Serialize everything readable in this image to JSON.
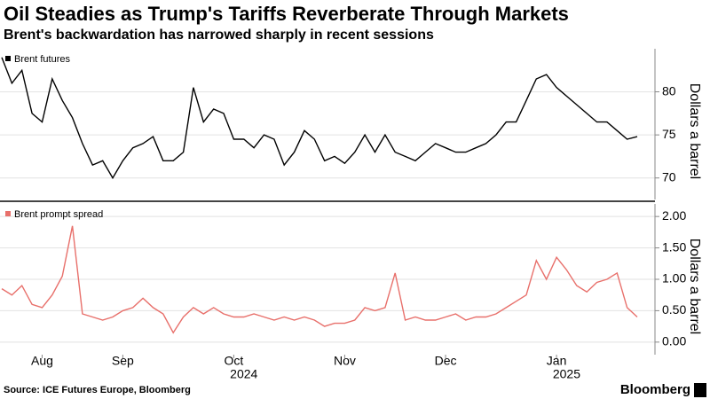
{
  "title": "Oil Steadies as Trump's Tariffs Reverberate Through Markets",
  "subtitle": "Brent's backwardation has narrowed sharply in recent sessions",
  "source": "Source: ICE Futures Europe, Bloomberg",
  "brand": "Bloomberg",
  "chart_data": [
    {
      "type": "line",
      "y_label": "Dollars a barrel",
      "ylim": [
        67.5,
        85
      ],
      "yticks": [
        70,
        75,
        80
      ],
      "grid": true,
      "legend": "top-left",
      "series": [
        {
          "name": "Brent futures",
          "color": "#000000",
          "values": [
            84,
            81,
            82.5,
            77.5,
            76.5,
            81.5,
            79,
            77,
            74,
            71.5,
            72,
            70,
            72,
            73.5,
            74,
            74.8,
            72,
            72,
            73,
            80.5,
            76.5,
            78,
            77.5,
            74.5,
            74.5,
            73.5,
            75,
            74.5,
            71.5,
            73,
            75.5,
            74.5,
            72,
            72.5,
            71.7,
            73,
            75,
            73,
            75,
            73,
            72.5,
            72,
            73,
            74,
            73.5,
            73,
            73,
            73.5,
            74,
            75,
            76.5,
            76.5,
            79,
            81.5,
            82,
            80.5,
            79.5,
            78.5,
            77.5,
            76.5,
            76.5,
            75.5,
            74.5,
            74.8
          ]
        }
      ]
    },
    {
      "type": "line",
      "y_label": "Dollars a barrel",
      "categories": [
        null,
        null,
        null,
        null,
        "Aug",
        null,
        null,
        null,
        null,
        null,
        null,
        null,
        "Sep",
        null,
        null,
        null,
        null,
        null,
        null,
        null,
        null,
        null,
        null,
        "Oct",
        null,
        null,
        null,
        null,
        null,
        null,
        null,
        null,
        null,
        null,
        "Nov",
        null,
        null,
        null,
        null,
        null,
        null,
        null,
        null,
        null,
        "Dec",
        null,
        null,
        null,
        null,
        null,
        null,
        null,
        null,
        null,
        null,
        "Jan",
        null,
        null,
        null,
        null,
        null,
        null,
        null,
        null
      ],
      "years": [
        null,
        null,
        null,
        null,
        null,
        null,
        null,
        null,
        null,
        null,
        null,
        null,
        null,
        null,
        null,
        null,
        null,
        null,
        null,
        null,
        null,
        null,
        null,
        null,
        "2024",
        null,
        null,
        null,
        null,
        null,
        null,
        null,
        null,
        null,
        null,
        null,
        null,
        null,
        null,
        null,
        null,
        null,
        null,
        null,
        null,
        null,
        null,
        null,
        null,
        null,
        null,
        null,
        null,
        null,
        null,
        null,
        "2025",
        null,
        null,
        null,
        null,
        null,
        null,
        null
      ],
      "ylim": [
        -0.2,
        2.2
      ],
      "yticks": [
        {
          "value": 0,
          "label": "0.00"
        },
        {
          "value": 0.5,
          "label": "0.50"
        },
        {
          "value": 1,
          "label": "1.00"
        },
        {
          "value": 1.5,
          "label": "1.50"
        },
        {
          "value": 2,
          "label": "2.00"
        }
      ],
      "grid": true,
      "legend": "top-left",
      "series": [
        {
          "name": "Brent prompt spread",
          "color": "#e8706b",
          "values": [
            0.85,
            0.75,
            0.9,
            0.6,
            0.55,
            0.75,
            1.05,
            1.85,
            0.45,
            0.4,
            0.35,
            0.4,
            0.5,
            0.55,
            0.7,
            0.55,
            0.45,
            0.15,
            0.4,
            0.55,
            0.45,
            0.55,
            0.45,
            0.4,
            0.4,
            0.45,
            0.4,
            0.35,
            0.4,
            0.35,
            0.4,
            0.35,
            0.25,
            0.3,
            0.3,
            0.35,
            0.55,
            0.5,
            0.55,
            1.1,
            0.35,
            0.4,
            0.35,
            0.35,
            0.4,
            0.45,
            0.35,
            0.4,
            0.4,
            0.45,
            0.55,
            0.65,
            0.75,
            1.3,
            1.0,
            1.35,
            1.15,
            0.9,
            0.8,
            0.95,
            1.0,
            1.1,
            0.55,
            0.4
          ]
        }
      ]
    }
  ]
}
